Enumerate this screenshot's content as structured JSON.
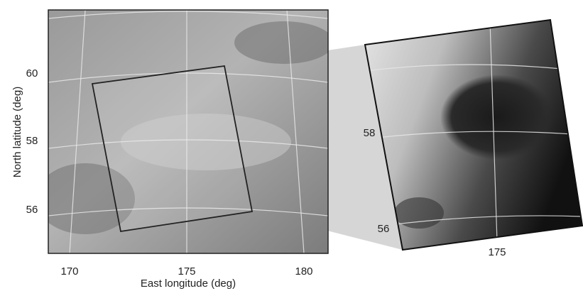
{
  "left_panel": {
    "x_axis": {
      "label": "East longitude (deg)",
      "ticks": [
        170,
        175,
        180
      ]
    },
    "y_axis": {
      "label": "North latitude (deg)",
      "ticks": [
        60,
        58,
        56
      ]
    }
  },
  "right_panel": {
    "lat_ticks": [
      58,
      56
    ],
    "lon_ticks": [
      175
    ]
  }
}
